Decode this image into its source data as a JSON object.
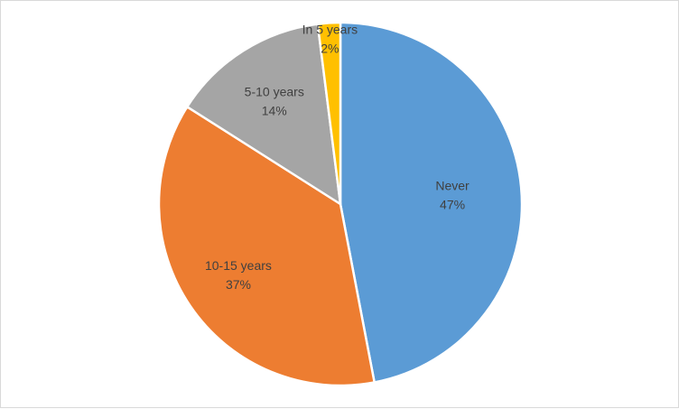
{
  "chart_data": {
    "type": "pie",
    "title": "",
    "legend": "none",
    "start_angle_deg": 0,
    "direction": "clockwise",
    "slices": [
      {
        "label": "Never",
        "value": 47,
        "display": "47%",
        "color": "#5B9BD5"
      },
      {
        "label": "10-15 years",
        "value": 37,
        "display": "37%",
        "color": "#ED7D31"
      },
      {
        "label": "5-10 years",
        "value": 14,
        "display": "14%",
        "color": "#A5A5A5"
      },
      {
        "label": "In 5 years",
        "value": 2,
        "display": "2%",
        "color": "#FFC000"
      }
    ]
  }
}
